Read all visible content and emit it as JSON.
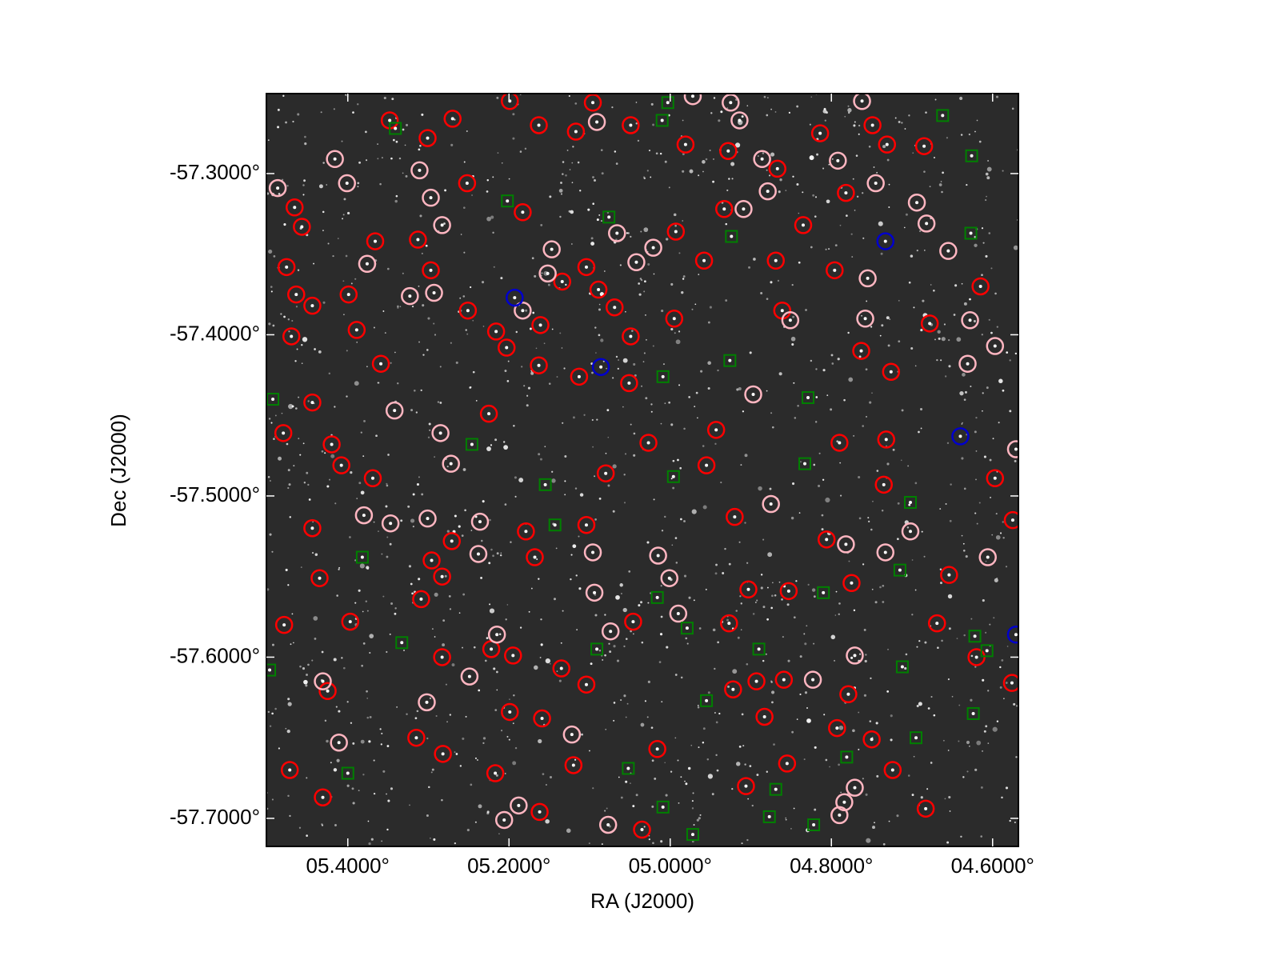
{
  "chart_data": {
    "type": "scatter",
    "xlabel": "RA (J2000)",
    "ylabel": "Dec (J2000)",
    "xlim": [
      5.501,
      4.568
    ],
    "ylim": [
      -57.7174,
      -57.2504
    ],
    "xticks": [
      {
        "value": 5.4,
        "label": "05.4000°"
      },
      {
        "value": 5.2,
        "label": "05.2000°"
      },
      {
        "value": 5.0,
        "label": "05.0000°"
      },
      {
        "value": 4.8,
        "label": "04.8000°"
      },
      {
        "value": 4.6,
        "label": "04.6000°"
      }
    ],
    "yticks": [
      {
        "value": -57.3,
        "label": "-57.3000°"
      },
      {
        "value": -57.4,
        "label": "-57.4000°"
      },
      {
        "value": -57.5,
        "label": "-57.5000°"
      },
      {
        "value": -57.6,
        "label": "-57.6000°"
      },
      {
        "value": -57.7,
        "label": "-57.7000°"
      }
    ],
    "background": "#2b2b2b",
    "series": [
      {
        "color": "#ff0000",
        "marker": "circle",
        "x": [
          5.348,
          5.301,
          5.27,
          5.199,
          5.163,
          5.117,
          5.096,
          5.049,
          4.981,
          4.928,
          4.867,
          4.814,
          4.749,
          4.731,
          4.685,
          5.252,
          5.183,
          5.466,
          5.457,
          5.366,
          5.313,
          5.297,
          5.476,
          5.464,
          5.444,
          5.399,
          5.389,
          5.359,
          5.47,
          5.251,
          5.216,
          5.203,
          5.161,
          5.163,
          5.134,
          5.104,
          5.089,
          5.113,
          5.069,
          5.049,
          5.051,
          4.993,
          4.995,
          4.958,
          4.933,
          4.869,
          4.861,
          4.835,
          4.782,
          4.796,
          4.763,
          4.726,
          4.678,
          4.615,
          5.444,
          5.48,
          5.42,
          5.408,
          5.369,
          5.444,
          5.435,
          5.397,
          5.479,
          5.425,
          5.225,
          5.296,
          5.283,
          5.309,
          5.283,
          5.271,
          5.222,
          5.195,
          5.199,
          5.159,
          5.179,
          5.168,
          5.104,
          5.08,
          5.104,
          5.135,
          5.046,
          5.027,
          4.955,
          4.943,
          4.92,
          4.903,
          4.927,
          4.922,
          4.893,
          4.883,
          4.906,
          4.855,
          4.859,
          4.853,
          4.806,
          4.79,
          4.735,
          4.732,
          4.775,
          4.779,
          4.793,
          4.75,
          4.724,
          4.683,
          4.62,
          4.654,
          4.669,
          4.576,
          4.597,
          4.575,
          5.472,
          5.431,
          5.315,
          5.282,
          5.217,
          5.162,
          5.12,
          5.035,
          5.016
        ],
        "y": [
          -57.267,
          -57.278,
          -57.266,
          -57.255,
          -57.27,
          -57.274,
          -57.256,
          -57.27,
          -57.282,
          -57.286,
          -57.297,
          -57.275,
          -57.27,
          -57.282,
          -57.283,
          -57.306,
          -57.324,
          -57.321,
          -57.333,
          -57.342,
          -57.341,
          -57.36,
          -57.358,
          -57.375,
          -57.382,
          -57.375,
          -57.397,
          -57.418,
          -57.401,
          -57.385,
          -57.398,
          -57.408,
          -57.394,
          -57.419,
          -57.367,
          -57.358,
          -57.372,
          -57.426,
          -57.383,
          -57.401,
          -57.43,
          -57.336,
          -57.39,
          -57.354,
          -57.322,
          -57.354,
          -57.385,
          -57.332,
          -57.312,
          -57.36,
          -57.41,
          -57.423,
          -57.393,
          -57.37,
          -57.442,
          -57.461,
          -57.468,
          -57.481,
          -57.489,
          -57.52,
          -57.551,
          -57.578,
          -57.58,
          -57.621,
          -57.449,
          -57.54,
          -57.55,
          -57.564,
          -57.6,
          -57.528,
          -57.595,
          -57.599,
          -57.634,
          -57.638,
          -57.522,
          -57.538,
          -57.518,
          -57.486,
          -57.617,
          -57.607,
          -57.578,
          -57.467,
          -57.481,
          -57.459,
          -57.513,
          -57.558,
          -57.579,
          -57.62,
          -57.615,
          -57.637,
          -57.68,
          -57.666,
          -57.614,
          -57.559,
          -57.527,
          -57.467,
          -57.493,
          -57.465,
          -57.554,
          -57.623,
          -57.644,
          -57.651,
          -57.67,
          -57.694,
          -57.6,
          -57.549,
          -57.579,
          -57.616,
          -57.489,
          -57.515,
          -57.67,
          -57.687,
          -57.65,
          -57.66,
          -57.672,
          -57.696,
          -57.667,
          -57.707,
          -57.657
        ]
      },
      {
        "color": "#ffb6c1",
        "marker": "circle",
        "x": [
          5.416,
          5.311,
          5.297,
          5.283,
          5.401,
          5.376,
          5.323,
          5.293,
          5.487,
          5.183,
          5.147,
          5.152,
          5.091,
          5.066,
          5.042,
          5.021,
          4.972,
          4.925,
          4.914,
          4.886,
          4.879,
          4.909,
          4.792,
          4.762,
          4.745,
          4.694,
          4.682,
          4.655,
          4.755,
          4.758,
          4.851,
          4.628,
          4.631,
          4.597,
          4.897,
          4.875,
          4.823,
          4.771,
          4.782,
          4.733,
          4.702,
          4.606,
          4.571,
          5.015,
          5.001,
          4.99,
          5.096,
          5.094,
          5.074,
          5.122,
          5.077,
          5.188,
          5.206,
          5.236,
          5.238,
          5.215,
          5.249,
          5.302,
          5.301,
          5.285,
          5.272,
          5.342,
          5.347,
          5.38,
          5.431,
          5.411,
          4.79,
          4.771,
          4.784
        ],
        "y": [
          -57.291,
          -57.298,
          -57.315,
          -57.332,
          -57.306,
          -57.356,
          -57.376,
          -57.374,
          -57.309,
          -57.385,
          -57.347,
          -57.362,
          -57.268,
          -57.337,
          -57.355,
          -57.346,
          -57.252,
          -57.256,
          -57.267,
          -57.291,
          -57.311,
          -57.322,
          -57.292,
          -57.255,
          -57.306,
          -57.318,
          -57.331,
          -57.348,
          -57.365,
          -57.39,
          -57.391,
          -57.391,
          -57.418,
          -57.407,
          -57.437,
          -57.505,
          -57.614,
          -57.599,
          -57.53,
          -57.535,
          -57.522,
          -57.538,
          -57.471,
          -57.537,
          -57.551,
          -57.573,
          -57.535,
          -57.56,
          -57.584,
          -57.648,
          -57.704,
          -57.692,
          -57.701,
          -57.516,
          -57.536,
          -57.586,
          -57.612,
          -57.628,
          -57.514,
          -57.461,
          -57.48,
          -57.447,
          -57.517,
          -57.512,
          -57.615,
          -57.653,
          -57.698,
          -57.681,
          -57.69
        ]
      },
      {
        "color": "#0000cc",
        "marker": "circle",
        "x": [
          4.733,
          5.193,
          5.086,
          4.64,
          4.571
        ],
        "y": [
          -57.342,
          -57.377,
          -57.42,
          -57.463,
          -57.586
        ]
      },
      {
        "color": "#008000",
        "marker": "square",
        "x": [
          5.341,
          5.003,
          5.01,
          4.662,
          4.626,
          5.202,
          5.076,
          4.924,
          4.627,
          4.926,
          5.009,
          4.829,
          5.246,
          4.833,
          4.996,
          5.155,
          4.702,
          5.143,
          5.382,
          4.715,
          5.016,
          4.81,
          4.979,
          5.333,
          5.091,
          4.89,
          4.712,
          4.622,
          4.607,
          4.955,
          4.624,
          4.695,
          4.781,
          5.4,
          5.052,
          4.869,
          5.009,
          4.877,
          4.822,
          4.972,
          5.493,
          5.497
        ],
        "y": [
          -57.272,
          -57.256,
          -57.267,
          -57.264,
          -57.289,
          -57.317,
          -57.327,
          -57.339,
          -57.337,
          -57.416,
          -57.426,
          -57.439,
          -57.468,
          -57.48,
          -57.488,
          -57.493,
          -57.504,
          -57.518,
          -57.538,
          -57.546,
          -57.563,
          -57.56,
          -57.582,
          -57.591,
          -57.595,
          -57.595,
          -57.606,
          -57.587,
          -57.596,
          -57.627,
          -57.635,
          -57.65,
          -57.662,
          -57.672,
          -57.669,
          -57.682,
          -57.693,
          -57.699,
          -57.704,
          -57.71,
          -57.44,
          -57.608
        ]
      }
    ]
  }
}
